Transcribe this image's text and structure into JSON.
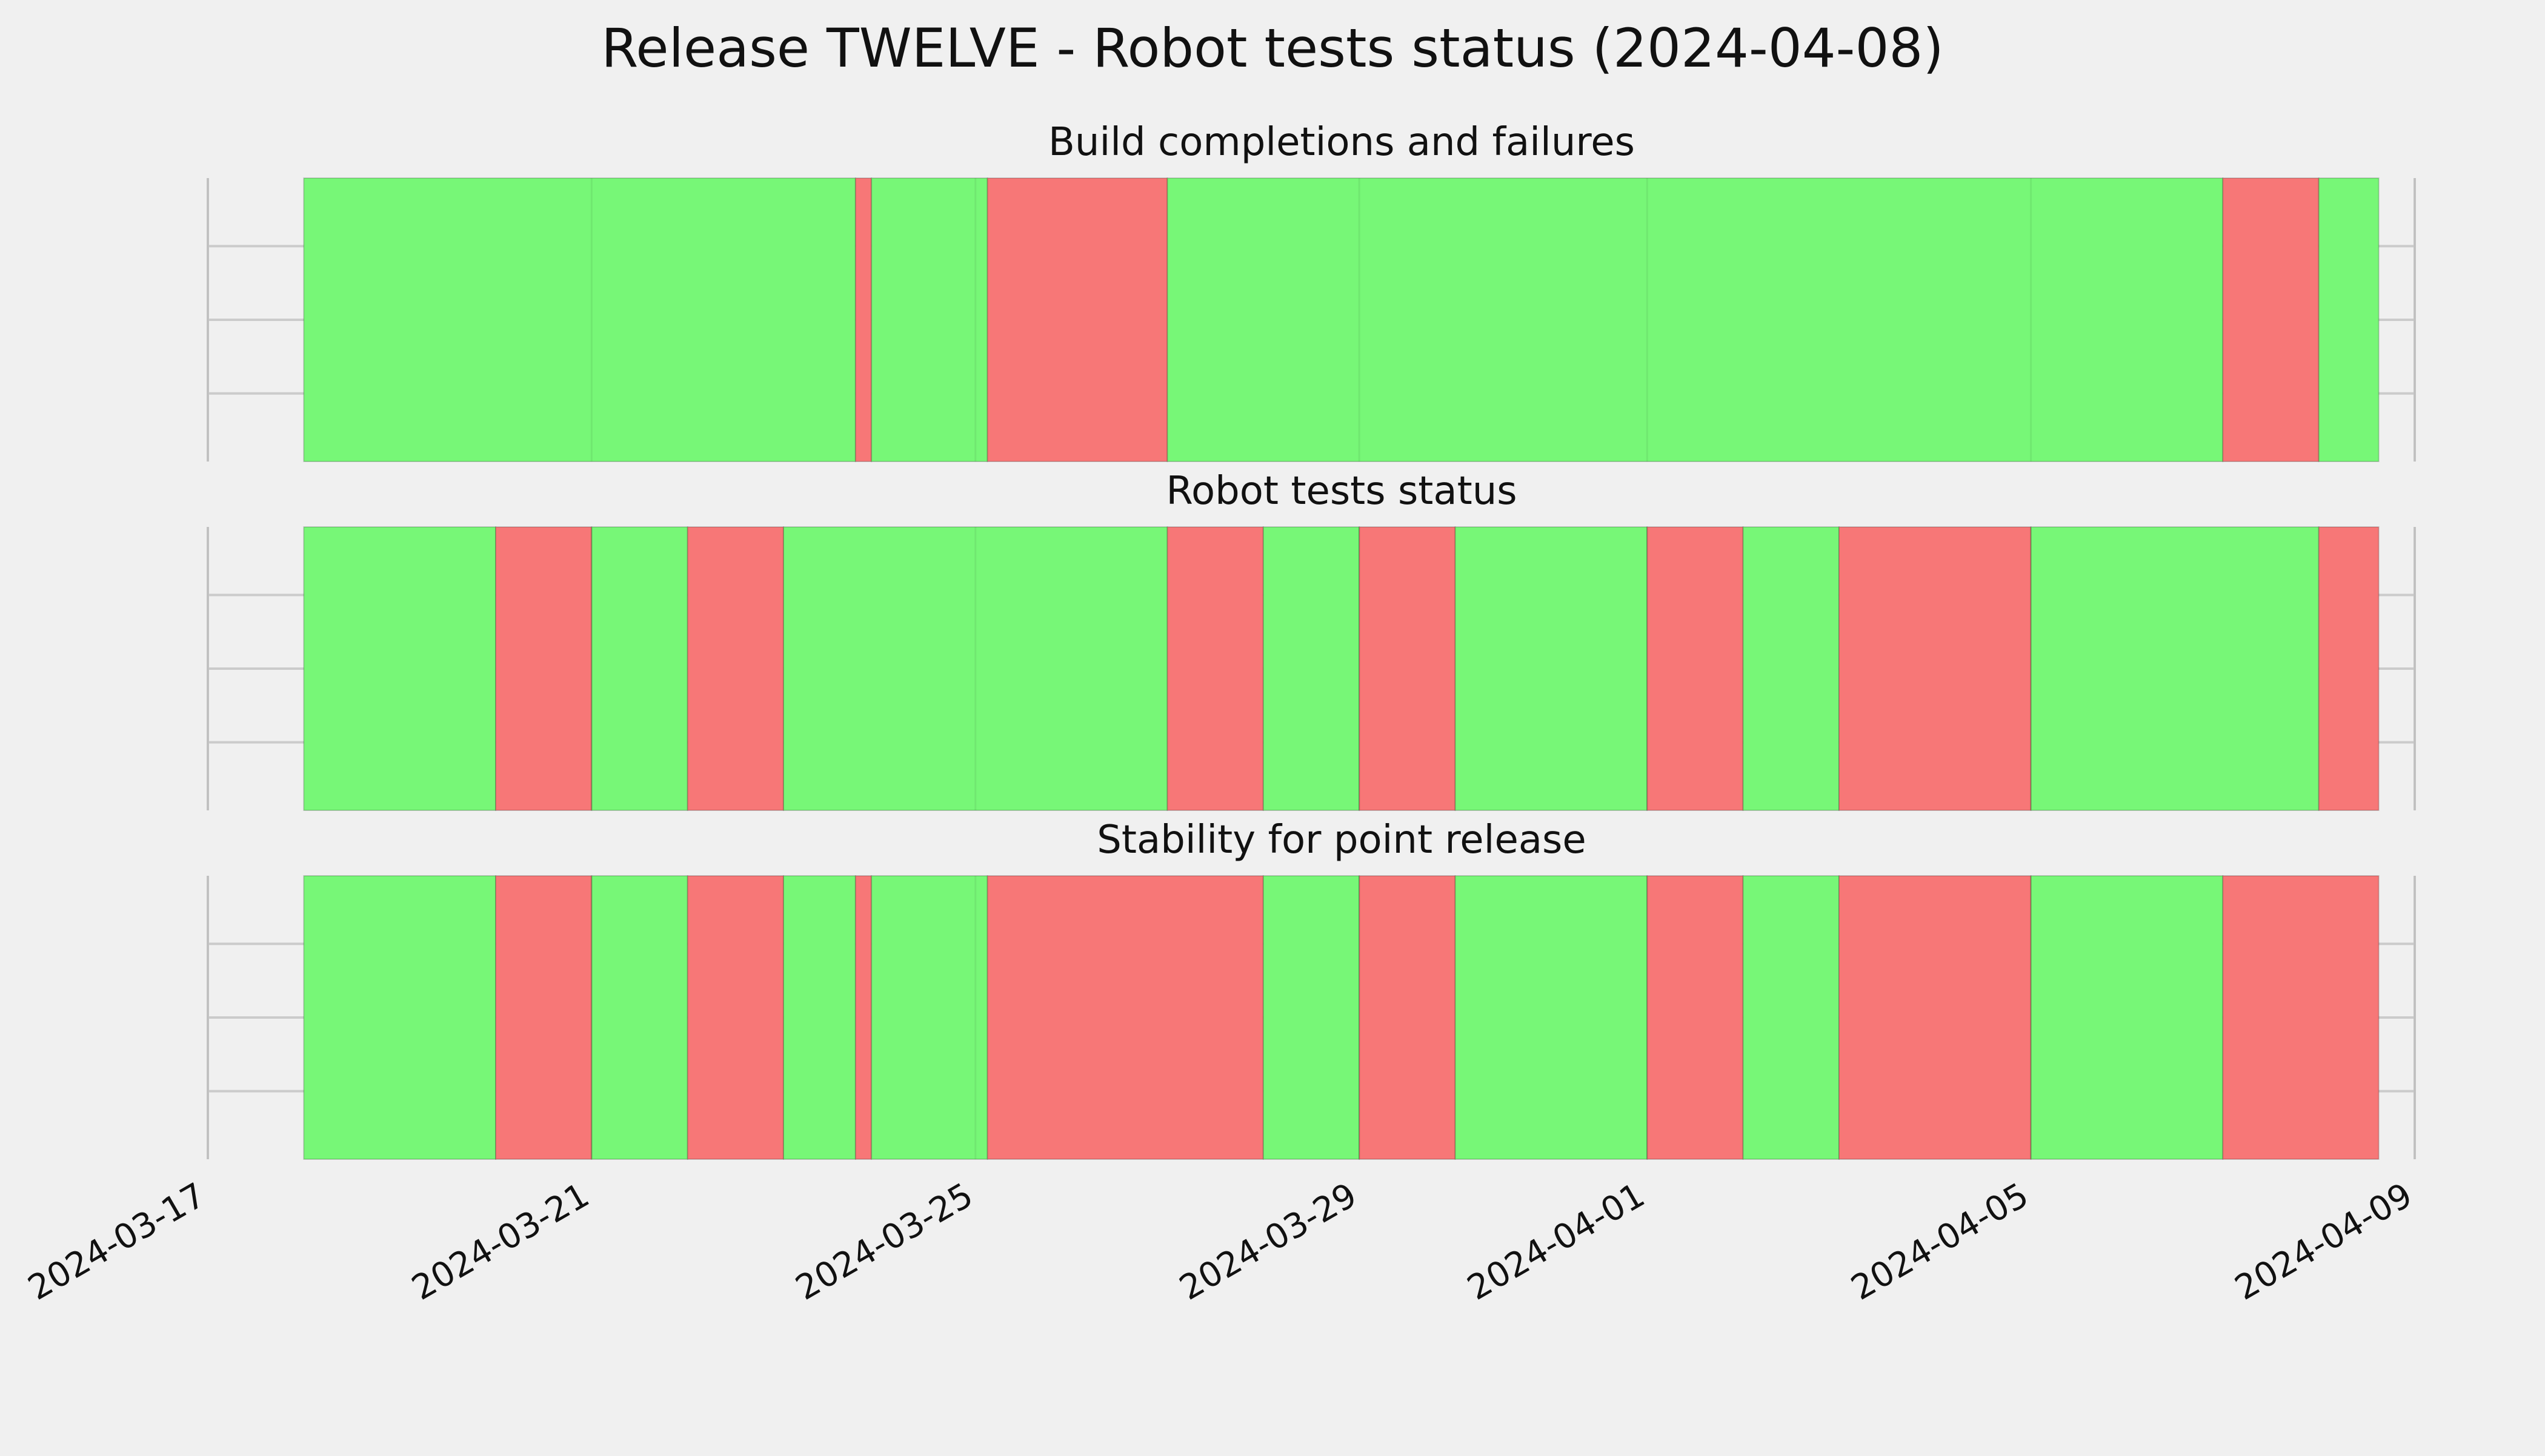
{
  "chart_data": {
    "type": "timeline",
    "title": "Release TWELVE - Robot tests status (2024-04-08)",
    "x_axis": {
      "type": "date",
      "range": [
        "2024-03-17",
        "2024-04-09"
      ],
      "ticks": [
        "2024-03-17",
        "2024-03-21",
        "2024-03-25",
        "2024-03-29",
        "2024-04-01",
        "2024-04-05",
        "2024-04-09"
      ]
    },
    "grid": true,
    "colors": {
      "pass": "#77f777",
      "fail": "#f77777",
      "background": "#f0f0f0",
      "grid": "#cbcbcb"
    },
    "panels": [
      {
        "subtitle": "Build completions and failures",
        "segments": [
          {
            "start": "2024-03-18 00:00",
            "end": "2024-03-23 18:00",
            "status": "pass"
          },
          {
            "start": "2024-03-23 18:00",
            "end": "2024-03-23 22:00",
            "status": "fail"
          },
          {
            "start": "2024-03-23 22:00",
            "end": "2024-03-25 03:00",
            "status": "pass"
          },
          {
            "start": "2024-03-25 03:00",
            "end": "2024-03-27 00:00",
            "status": "fail"
          },
          {
            "start": "2024-03-27 00:00",
            "end": "2024-04-07 00:00",
            "status": "pass"
          },
          {
            "start": "2024-04-07 00:00",
            "end": "2024-04-08 00:00",
            "status": "fail"
          },
          {
            "start": "2024-04-08 00:00",
            "end": "2024-04-08 15:00",
            "status": "pass"
          }
        ]
      },
      {
        "subtitle": "Robot tests status",
        "segments": [
          {
            "start": "2024-03-18 00:00",
            "end": "2024-03-20 00:00",
            "status": "pass"
          },
          {
            "start": "2024-03-20 00:00",
            "end": "2024-03-21 00:00",
            "status": "fail"
          },
          {
            "start": "2024-03-21 00:00",
            "end": "2024-03-22 00:00",
            "status": "pass"
          },
          {
            "start": "2024-03-22 00:00",
            "end": "2024-03-23 00:00",
            "status": "fail"
          },
          {
            "start": "2024-03-23 00:00",
            "end": "2024-03-27 00:00",
            "status": "pass"
          },
          {
            "start": "2024-03-27 00:00",
            "end": "2024-03-28 00:00",
            "status": "fail"
          },
          {
            "start": "2024-03-28 00:00",
            "end": "2024-03-29 00:00",
            "status": "pass"
          },
          {
            "start": "2024-03-29 00:00",
            "end": "2024-03-30 00:00",
            "status": "fail"
          },
          {
            "start": "2024-03-30 00:00",
            "end": "2024-04-01 00:00",
            "status": "pass"
          },
          {
            "start": "2024-04-01 00:00",
            "end": "2024-04-02 00:00",
            "status": "fail"
          },
          {
            "start": "2024-04-02 00:00",
            "end": "2024-04-03 00:00",
            "status": "pass"
          },
          {
            "start": "2024-04-03 00:00",
            "end": "2024-04-05 00:00",
            "status": "fail"
          },
          {
            "start": "2024-04-05 00:00",
            "end": "2024-04-08 00:00",
            "status": "pass"
          },
          {
            "start": "2024-04-08 00:00",
            "end": "2024-04-08 15:00",
            "status": "fail"
          }
        ]
      },
      {
        "subtitle": "Stability for point release",
        "segments": [
          {
            "start": "2024-03-18 00:00",
            "end": "2024-03-20 00:00",
            "status": "pass"
          },
          {
            "start": "2024-03-20 00:00",
            "end": "2024-03-21 00:00",
            "status": "fail"
          },
          {
            "start": "2024-03-21 00:00",
            "end": "2024-03-22 00:00",
            "status": "pass"
          },
          {
            "start": "2024-03-22 00:00",
            "end": "2024-03-23 00:00",
            "status": "fail"
          },
          {
            "start": "2024-03-23 00:00",
            "end": "2024-03-23 18:00",
            "status": "pass"
          },
          {
            "start": "2024-03-23 18:00",
            "end": "2024-03-23 22:00",
            "status": "fail"
          },
          {
            "start": "2024-03-23 22:00",
            "end": "2024-03-25 03:00",
            "status": "pass"
          },
          {
            "start": "2024-03-25 03:00",
            "end": "2024-03-28 00:00",
            "status": "fail"
          },
          {
            "start": "2024-03-28 00:00",
            "end": "2024-03-29 00:00",
            "status": "pass"
          },
          {
            "start": "2024-03-29 00:00",
            "end": "2024-03-30 00:00",
            "status": "fail"
          },
          {
            "start": "2024-03-30 00:00",
            "end": "2024-04-01 00:00",
            "status": "pass"
          },
          {
            "start": "2024-04-01 00:00",
            "end": "2024-04-02 00:00",
            "status": "fail"
          },
          {
            "start": "2024-04-02 00:00",
            "end": "2024-04-03 00:00",
            "status": "pass"
          },
          {
            "start": "2024-04-03 00:00",
            "end": "2024-04-05 00:00",
            "status": "fail"
          },
          {
            "start": "2024-04-05 00:00",
            "end": "2024-04-07 00:00",
            "status": "pass"
          },
          {
            "start": "2024-04-07 00:00",
            "end": "2024-04-08 15:00",
            "status": "fail"
          }
        ]
      }
    ]
  }
}
